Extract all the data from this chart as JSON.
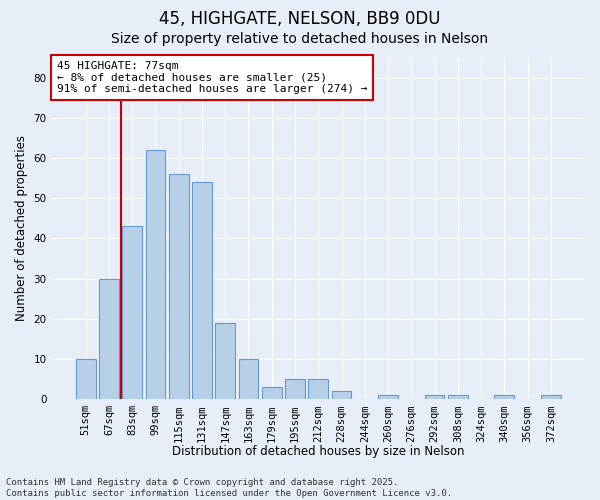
{
  "title1": "45, HIGHGATE, NELSON, BB9 0DU",
  "title2": "Size of property relative to detached houses in Nelson",
  "xlabel": "Distribution of detached houses by size in Nelson",
  "ylabel": "Number of detached properties",
  "categories": [
    "51sqm",
    "67sqm",
    "83sqm",
    "99sqm",
    "115sqm",
    "131sqm",
    "147sqm",
    "163sqm",
    "179sqm",
    "195sqm",
    "212sqm",
    "228sqm",
    "244sqm",
    "260sqm",
    "276sqm",
    "292sqm",
    "308sqm",
    "324sqm",
    "340sqm",
    "356sqm",
    "372sqm"
  ],
  "values": [
    10,
    30,
    43,
    62,
    56,
    54,
    19,
    10,
    3,
    5,
    5,
    2,
    0,
    1,
    0,
    1,
    1,
    0,
    1,
    0,
    1
  ],
  "bar_color": "#b8cfe8",
  "bar_edge_color": "#6699cc",
  "vline_color": "#cc0000",
  "annotation_text": "45 HIGHGATE: 77sqm\n← 8% of detached houses are smaller (25)\n91% of semi-detached houses are larger (274) →",
  "annotation_box_color": "#ffffff",
  "annotation_box_edge_color": "#cc0000",
  "ylim": [
    0,
    85
  ],
  "yticks": [
    0,
    10,
    20,
    30,
    40,
    50,
    60,
    70,
    80
  ],
  "background_color": "#e8eef8",
  "grid_color": "#ffffff",
  "footer_text": "Contains HM Land Registry data © Crown copyright and database right 2025.\nContains public sector information licensed under the Open Government Licence v3.0.",
  "title_fontsize": 12,
  "subtitle_fontsize": 10,
  "axis_label_fontsize": 8.5,
  "tick_fontsize": 7.5,
  "annotation_fontsize": 8,
  "footer_fontsize": 6.5
}
